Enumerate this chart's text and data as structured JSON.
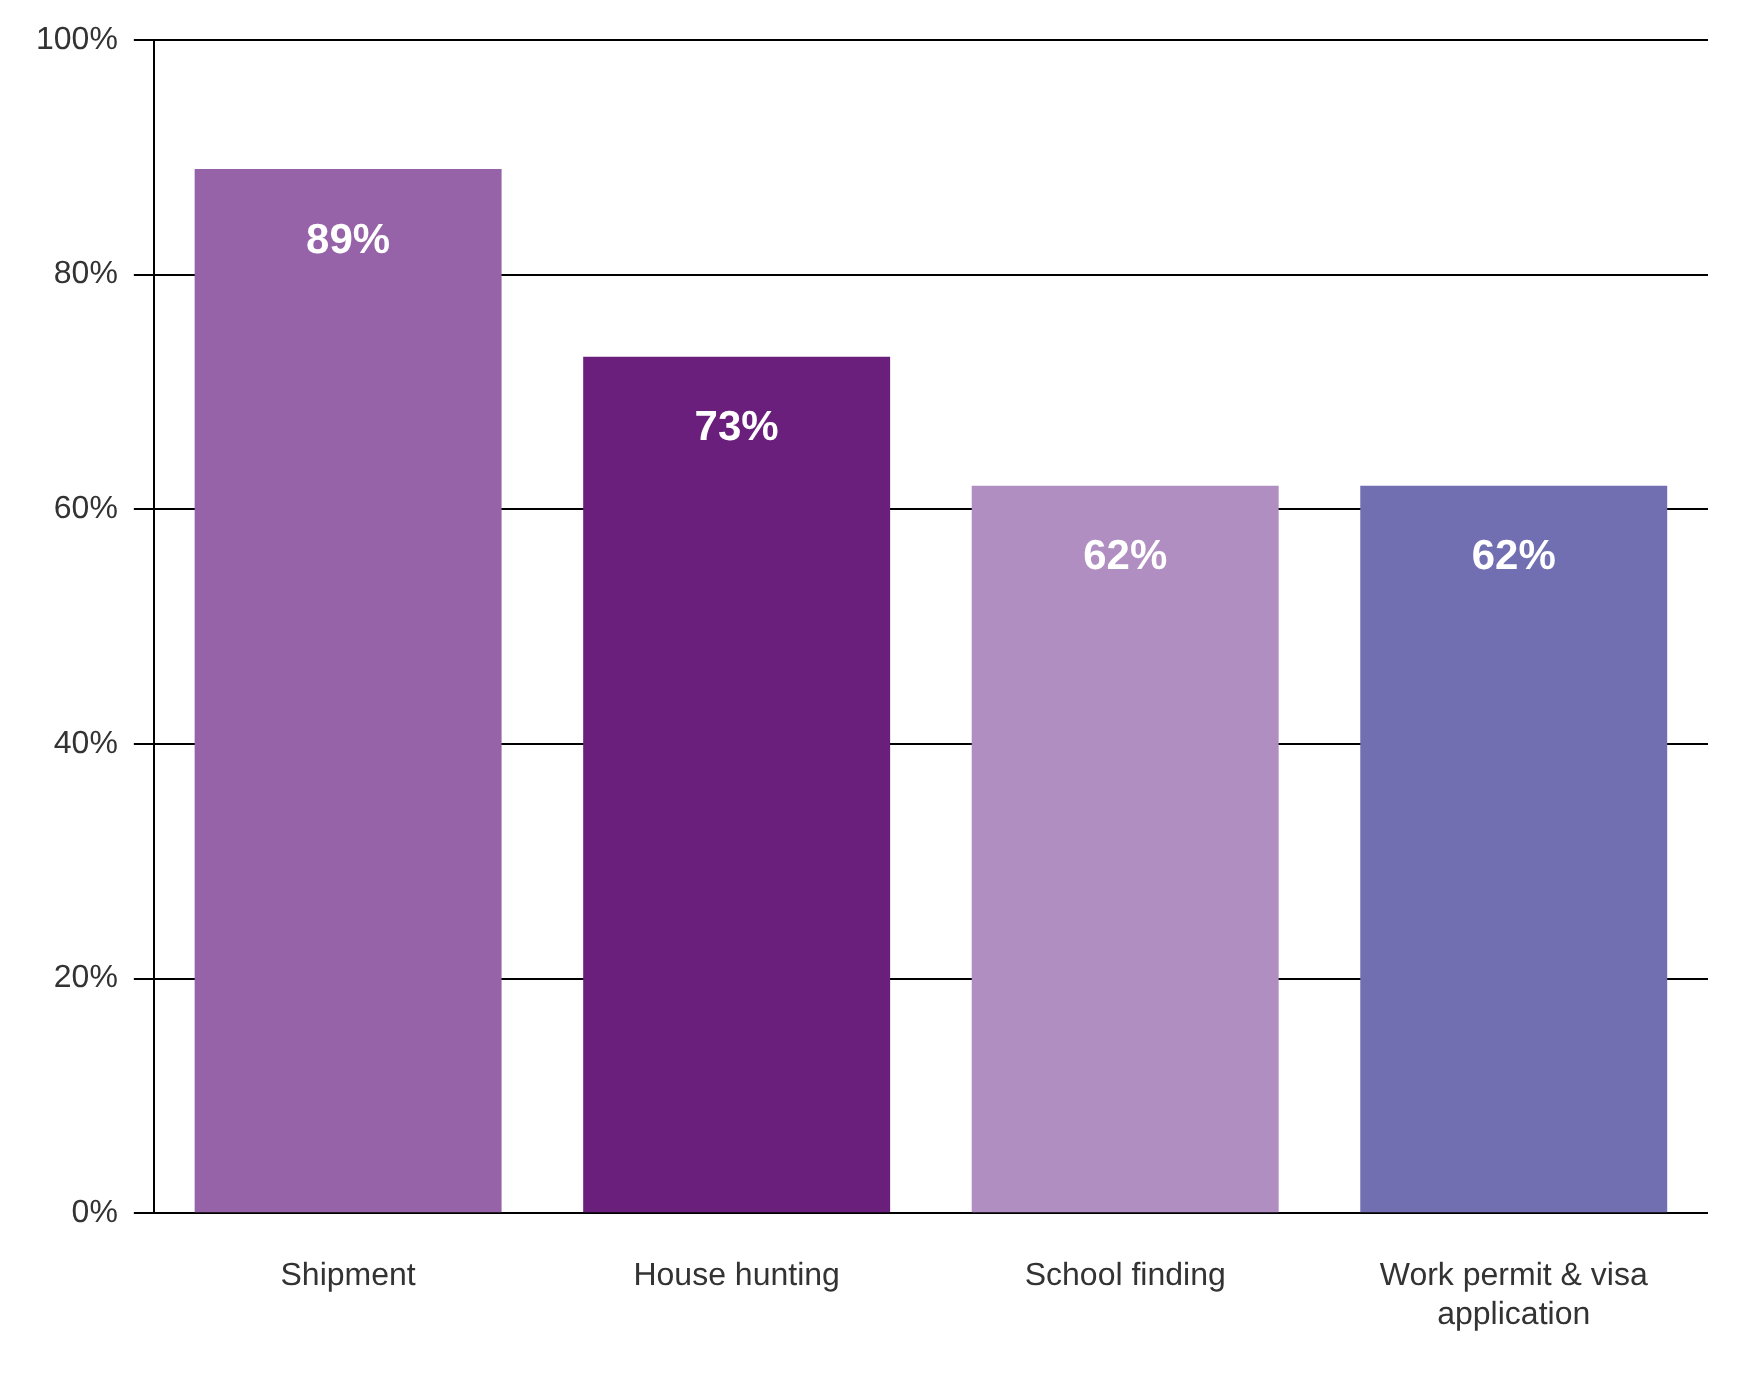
{
  "chart_data": {
    "type": "bar",
    "categories": [
      "Shipment",
      "House hunting",
      "School finding",
      "Work permit & visa application"
    ],
    "values": [
      89,
      73,
      62,
      62
    ],
    "colors": [
      "#9663a8",
      "#6b1f7c",
      "#b08ec2",
      "#716fb2"
    ],
    "value_labels": [
      "89%",
      "73%",
      "62%",
      "62%"
    ],
    "ylim": [
      0,
      100
    ],
    "yticks": [
      {
        "value": 0,
        "label": "0%"
      },
      {
        "value": 20,
        "label": "20%"
      },
      {
        "value": 40,
        "label": "40%"
      },
      {
        "value": 60,
        "label": "60%"
      },
      {
        "value": 80,
        "label": "80%"
      },
      {
        "value": 100,
        "label": "100%"
      }
    ],
    "grid": "y",
    "legend": false
  }
}
